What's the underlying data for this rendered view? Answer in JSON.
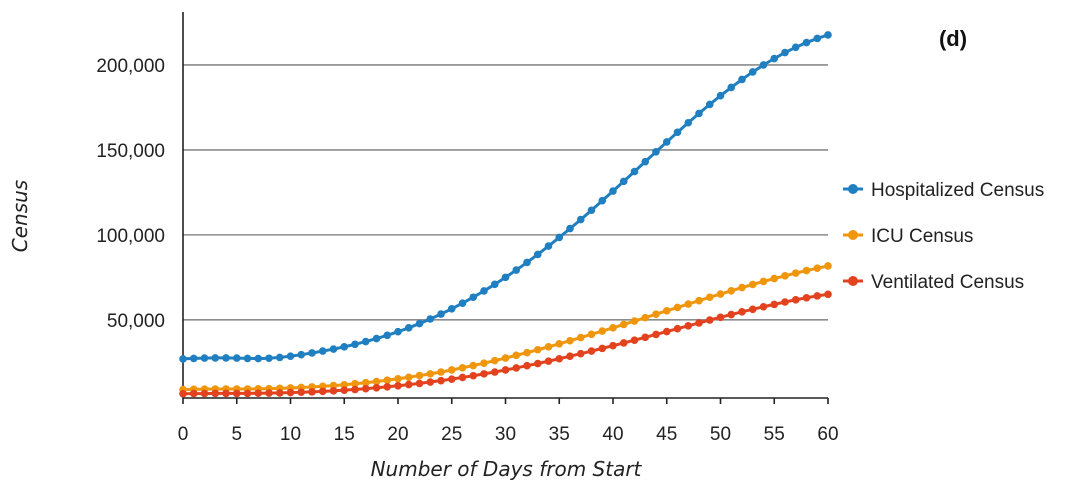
{
  "chart_data": {
    "type": "line",
    "panel_label": "(d)",
    "xlabel": "Number of Days from Start",
    "ylabel": "Census",
    "xlim": [
      0,
      60
    ],
    "ylim": [
      4000,
      230000
    ],
    "x_ticks": [
      0,
      5,
      10,
      15,
      20,
      25,
      30,
      35,
      40,
      45,
      50,
      55,
      60
    ],
    "y_ticks": [
      50000,
      100000,
      150000,
      200000
    ],
    "y_tick_labels": [
      "50,000",
      "100,000",
      "150,000",
      "200,000"
    ],
    "grid": true,
    "legend_position": "right",
    "x": [
      0,
      1,
      2,
      3,
      4,
      5,
      6,
      7,
      8,
      9,
      10,
      11,
      12,
      13,
      14,
      15,
      16,
      17,
      18,
      19,
      20,
      21,
      22,
      23,
      24,
      25,
      26,
      27,
      28,
      29,
      30,
      31,
      32,
      33,
      34,
      35,
      36,
      37,
      38,
      39,
      40,
      41,
      42,
      43,
      44,
      45,
      46,
      47,
      48,
      49,
      50,
      51,
      52,
      53,
      54,
      55,
      56,
      57,
      58,
      59,
      60
    ],
    "series": [
      {
        "name": "Hospitalized Census",
        "color": "#1f7fc0",
        "values": [
          27000,
          27300,
          27500,
          27600,
          27600,
          27500,
          27300,
          27200,
          27400,
          27900,
          28600,
          29500,
          30500,
          31600,
          32800,
          34100,
          35600,
          37200,
          39000,
          40900,
          43000,
          45300,
          47800,
          50500,
          53400,
          56500,
          59800,
          63300,
          67000,
          70900,
          75000,
          79300,
          83800,
          88500,
          93400,
          98500,
          103700,
          109000,
          114500,
          120100,
          125800,
          131500,
          137300,
          143100,
          148900,
          154700,
          160400,
          166000,
          171500,
          176800,
          181900,
          186800,
          191500,
          195900,
          200000,
          203800,
          207300,
          210400,
          213200,
          215600,
          217700
        ]
      },
      {
        "name": "ICU Census",
        "color": "#f0960c",
        "values": [
          9000,
          9100,
          9200,
          9300,
          9300,
          9300,
          9300,
          9400,
          9500,
          9700,
          9900,
          10200,
          10500,
          10900,
          11300,
          11800,
          12400,
          13000,
          13700,
          14500,
          15300,
          16200,
          17200,
          18200,
          19300,
          20500,
          21800,
          23100,
          24500,
          26000,
          27500,
          29100,
          30700,
          32400,
          34100,
          35900,
          37700,
          39600,
          41500,
          43400,
          45300,
          47300,
          49300,
          51300,
          53300,
          55300,
          57300,
          59300,
          61300,
          63300,
          65200,
          67100,
          69000,
          70800,
          72600,
          74300,
          75900,
          77500,
          79000,
          80400,
          81700
        ]
      },
      {
        "name": "Ventilated Census",
        "color": "#e2431e",
        "values": [
          6500,
          6600,
          6600,
          6700,
          6700,
          6700,
          6700,
          6800,
          6900,
          7000,
          7200,
          7400,
          7600,
          7900,
          8200,
          8600,
          9000,
          9500,
          10000,
          10600,
          11200,
          11900,
          12600,
          13400,
          14200,
          15100,
          16100,
          17100,
          18200,
          19300,
          20500,
          21700,
          23000,
          24300,
          25700,
          27100,
          28600,
          30100,
          31600,
          33200,
          34800,
          36400,
          38000,
          39700,
          41400,
          43100,
          44800,
          46500,
          48200,
          49900,
          51500,
          53100,
          54700,
          56200,
          57700,
          59100,
          60500,
          61800,
          63000,
          64100,
          65000
        ]
      }
    ]
  }
}
